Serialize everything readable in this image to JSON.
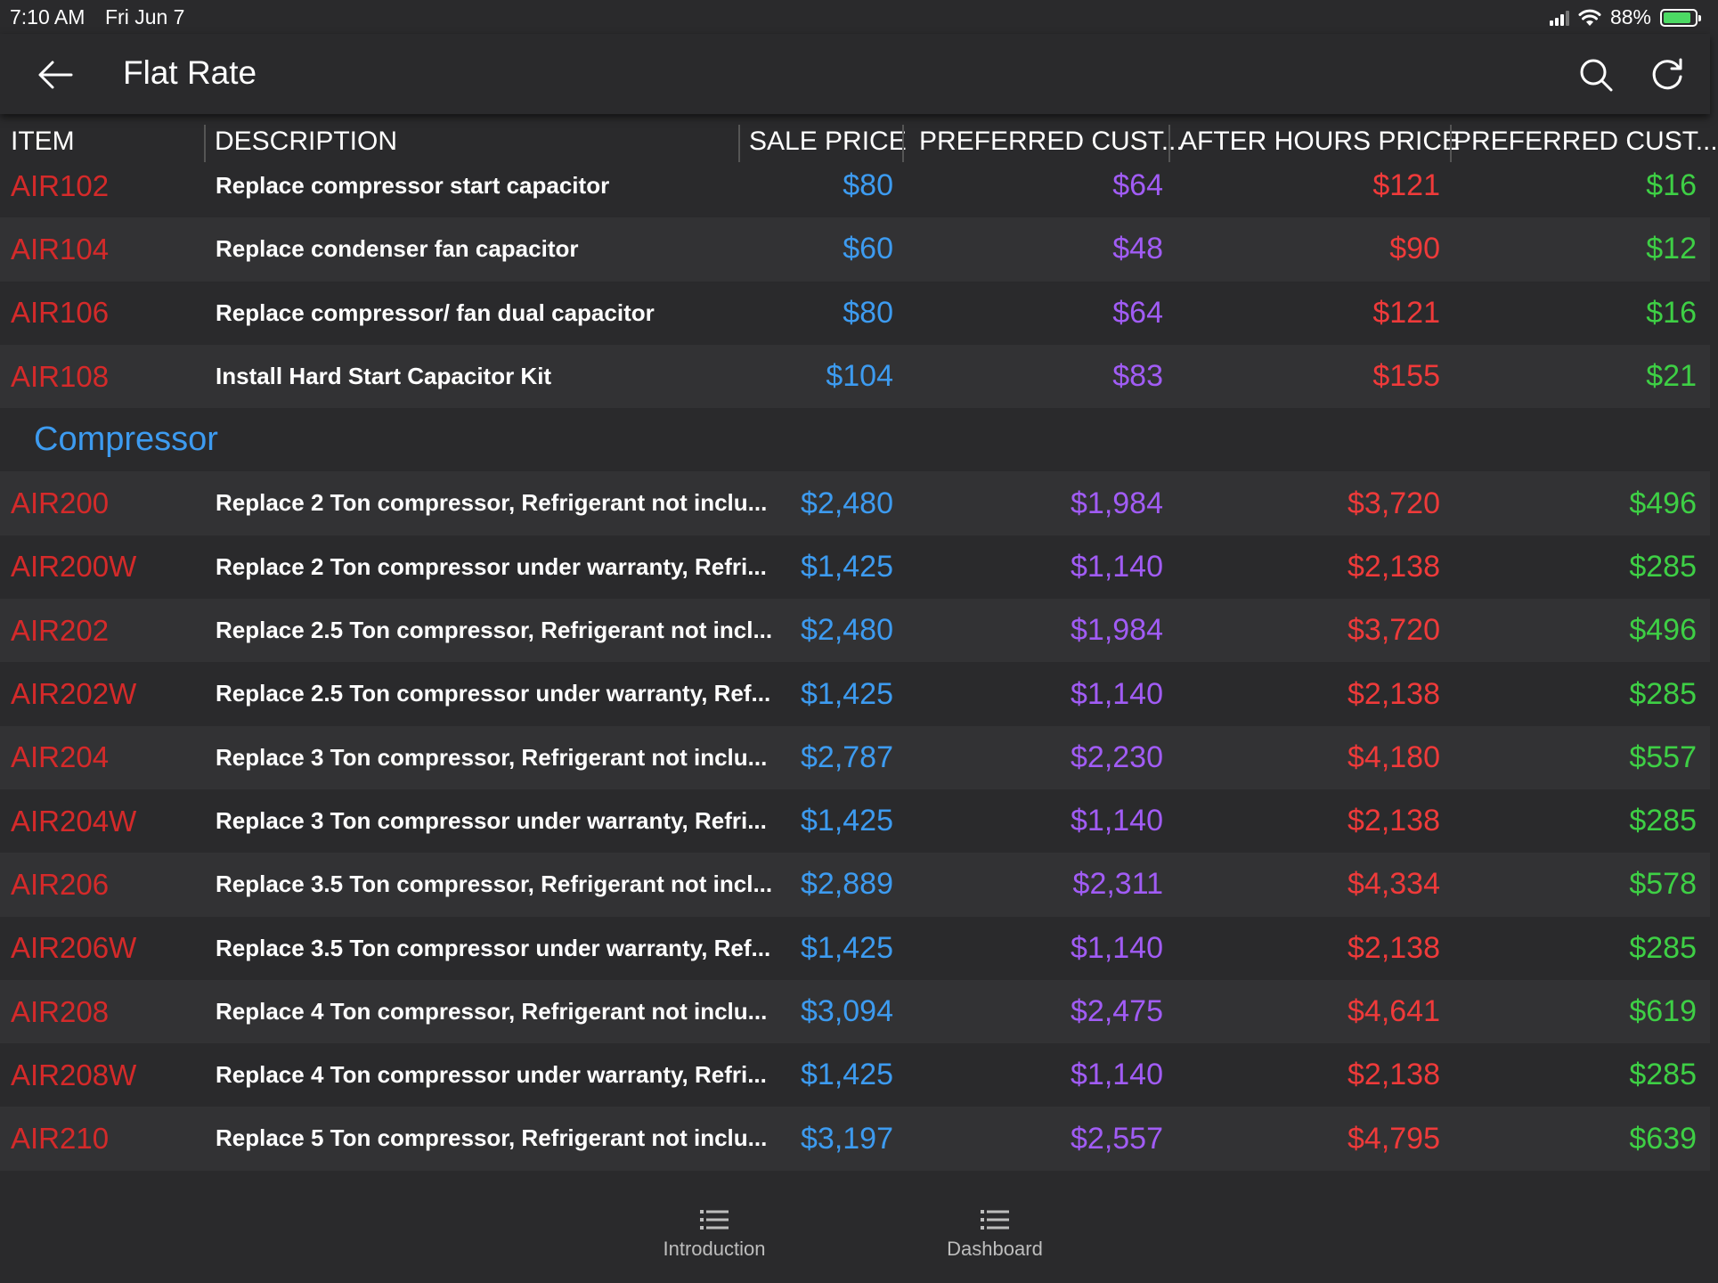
{
  "status": {
    "time": "7:10 AM",
    "date": "Fri Jun 7",
    "battery": "88%",
    "battery_level": 0.88
  },
  "header": {
    "title": "Flat Rate",
    "back_icon": "arrow-left-icon",
    "search_icon": "search-icon",
    "refresh_icon": "refresh-icon"
  },
  "columns": [
    "ITEM",
    "DESCRIPTION",
    "SALE PRICE",
    "PREFERRED CUST...",
    "AFTER HOURS PRICE",
    "PREFERRED CUST..."
  ],
  "colors": {
    "item": "#d42a2a",
    "sale": "#3d9bf0",
    "preferred": "#a15cf5",
    "after_hours": "#ef3a3a",
    "preferred_after": "#3ecf45",
    "section": "#3d9bf0"
  },
  "rows": [
    {
      "item": "AIR102",
      "description": "Replace compressor start capacitor",
      "sale": "$80",
      "preferred": "$64",
      "after_hours": "$121",
      "preferred_after": "$16"
    },
    {
      "item": "AIR104",
      "description": "Replace condenser fan capacitor",
      "sale": "$60",
      "preferred": "$48",
      "after_hours": "$90",
      "preferred_after": "$12"
    },
    {
      "item": "AIR106",
      "description": "Replace compressor/ fan dual capacitor",
      "sale": "$80",
      "preferred": "$64",
      "after_hours": "$121",
      "preferred_after": "$16"
    },
    {
      "item": "AIR108",
      "description": "Install Hard Start Capacitor Kit",
      "sale": "$104",
      "preferred": "$83",
      "after_hours": "$155",
      "preferred_after": "$21"
    }
  ],
  "section": {
    "title": "Compressor"
  },
  "section_rows": [
    {
      "item": "AIR200",
      "description": "Replace 2 Ton compressor, Refrigerant not inclu...",
      "sale": "$2,480",
      "preferred": "$1,984",
      "after_hours": "$3,720",
      "preferred_after": "$496"
    },
    {
      "item": "AIR200W",
      "description": "Replace 2 Ton compressor under warranty, Refri...",
      "sale": "$1,425",
      "preferred": "$1,140",
      "after_hours": "$2,138",
      "preferred_after": "$285"
    },
    {
      "item": "AIR202",
      "description": "Replace 2.5 Ton compressor, Refrigerant not incl...",
      "sale": "$2,480",
      "preferred": "$1,984",
      "after_hours": "$3,720",
      "preferred_after": "$496"
    },
    {
      "item": "AIR202W",
      "description": "Replace 2.5 Ton compressor under warranty, Ref...",
      "sale": "$1,425",
      "preferred": "$1,140",
      "after_hours": "$2,138",
      "preferred_after": "$285"
    },
    {
      "item": "AIR204",
      "description": "Replace 3 Ton compressor, Refrigerant not inclu...",
      "sale": "$2,787",
      "preferred": "$2,230",
      "after_hours": "$4,180",
      "preferred_after": "$557"
    },
    {
      "item": "AIR204W",
      "description": "Replace 3 Ton compressor under warranty, Refri...",
      "sale": "$1,425",
      "preferred": "$1,140",
      "after_hours": "$2,138",
      "preferred_after": "$285"
    },
    {
      "item": "AIR206",
      "description": "Replace 3.5 Ton compressor, Refrigerant not incl...",
      "sale": "$2,889",
      "preferred": "$2,311",
      "after_hours": "$4,334",
      "preferred_after": "$578"
    },
    {
      "item": "AIR206W",
      "description": "Replace 3.5 Ton compressor under warranty, Ref...",
      "sale": "$1,425",
      "preferred": "$1,140",
      "after_hours": "$2,138",
      "preferred_after": "$285"
    },
    {
      "item": "AIR208",
      "description": "Replace 4 Ton compressor, Refrigerant not inclu...",
      "sale": "$3,094",
      "preferred": "$2,475",
      "after_hours": "$4,641",
      "preferred_after": "$619"
    },
    {
      "item": "AIR208W",
      "description": "Replace 4 Ton compressor under warranty, Refri...",
      "sale": "$1,425",
      "preferred": "$1,140",
      "after_hours": "$2,138",
      "preferred_after": "$285"
    },
    {
      "item": "AIR210",
      "description": "Replace 5 Ton compressor, Refrigerant not inclu...",
      "sale": "$3,197",
      "preferred": "$2,557",
      "after_hours": "$4,795",
      "preferred_after": "$639"
    }
  ],
  "tabs": [
    {
      "label": "Introduction",
      "icon": "list-icon"
    },
    {
      "label": "Dashboard",
      "icon": "list-icon"
    }
  ]
}
